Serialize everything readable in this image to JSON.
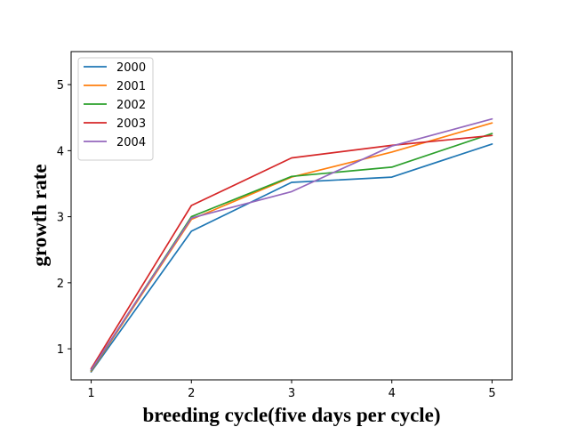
{
  "chart_data": {
    "type": "line",
    "title": "",
    "xlabel": "breeding cycle(five days per cycle)",
    "ylabel": "growth rate",
    "x": [
      1,
      2,
      3,
      4,
      5
    ],
    "xticks": [
      "1",
      "2",
      "3",
      "4",
      "5"
    ],
    "yticks": [
      "1",
      "2",
      "3",
      "4",
      "5"
    ],
    "xlim": [
      0.8,
      5.2
    ],
    "ylim": [
      0.53,
      5.5
    ],
    "legend_position": "top-left",
    "grid": false,
    "series": [
      {
        "name": "2000",
        "color": "#1f77b4",
        "values": [
          0.65,
          2.78,
          3.52,
          3.6,
          4.1
        ]
      },
      {
        "name": "2001",
        "color": "#ff7f0e",
        "values": [
          0.66,
          2.96,
          3.6,
          3.98,
          4.42
        ]
      },
      {
        "name": "2002",
        "color": "#2ca02c",
        "values": [
          0.67,
          3.0,
          3.61,
          3.75,
          4.26
        ]
      },
      {
        "name": "2003",
        "color": "#d62728",
        "values": [
          0.7,
          3.17,
          3.89,
          4.08,
          4.23
        ]
      },
      {
        "name": "2004",
        "color": "#9467bd",
        "values": [
          0.68,
          2.98,
          3.38,
          4.07,
          4.48
        ]
      }
    ]
  }
}
